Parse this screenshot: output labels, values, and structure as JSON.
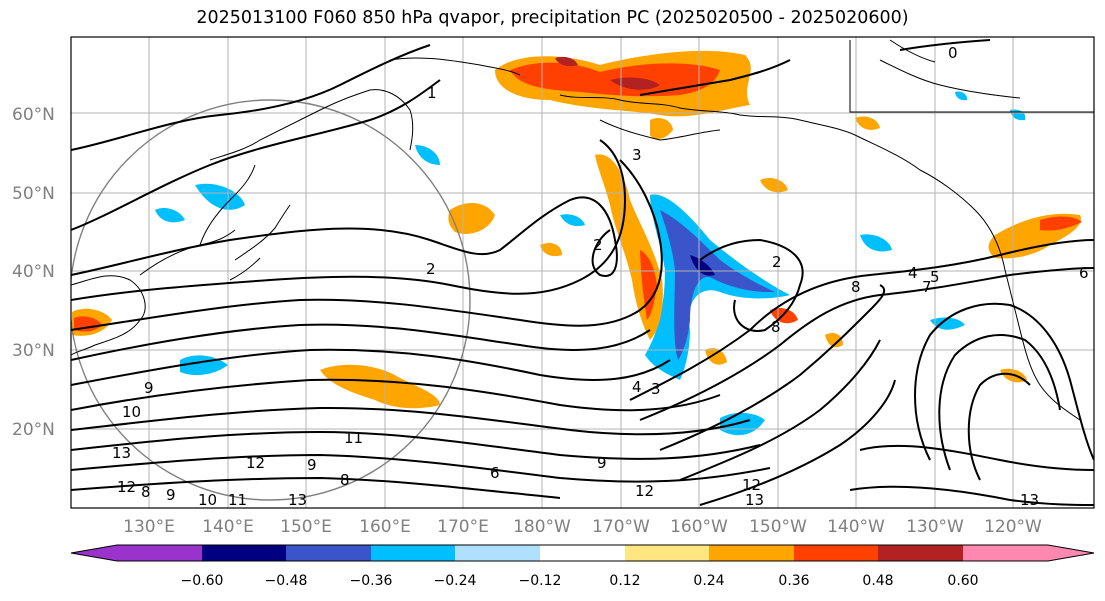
{
  "title": "2025013100 F060 850 hPa qvapor, precipitation PC (2025020500 - 2025020600)",
  "lat_labels": [
    "20°N",
    "30°N",
    "40°N",
    "50°N",
    "60°N"
  ],
  "lon_labels": [
    "130°E",
    "140°E",
    "150°E",
    "160°E",
    "170°E",
    "180°W",
    "170°W",
    "160°W",
    "150°W",
    "140°W",
    "130°W",
    "120°W"
  ],
  "colorbar": {
    "colors": [
      "#9933cc",
      "#000080",
      "#3a55c9",
      "#00bfff",
      "#b0e0ff",
      "#ffffff",
      "#ffe680",
      "#ffa500",
      "#ff4000",
      "#b22222",
      "#ff88b0"
    ],
    "labels": [
      "−0.60",
      "−0.48",
      "−0.36",
      "−0.24",
      "−0.12",
      "0.12",
      "0.24",
      "0.36",
      "0.48",
      "0.60"
    ]
  },
  "contour_labels": [
    "0",
    "1",
    "2",
    "3",
    "2",
    "4",
    "5",
    "6",
    "7",
    "8",
    "8",
    "2",
    "9",
    "10",
    "11",
    "12",
    "13",
    "12",
    "9",
    "8",
    "9",
    "10",
    "11",
    "13",
    "8",
    "6",
    "12",
    "13",
    "12",
    "13",
    "4",
    "3",
    "9"
  ]
}
